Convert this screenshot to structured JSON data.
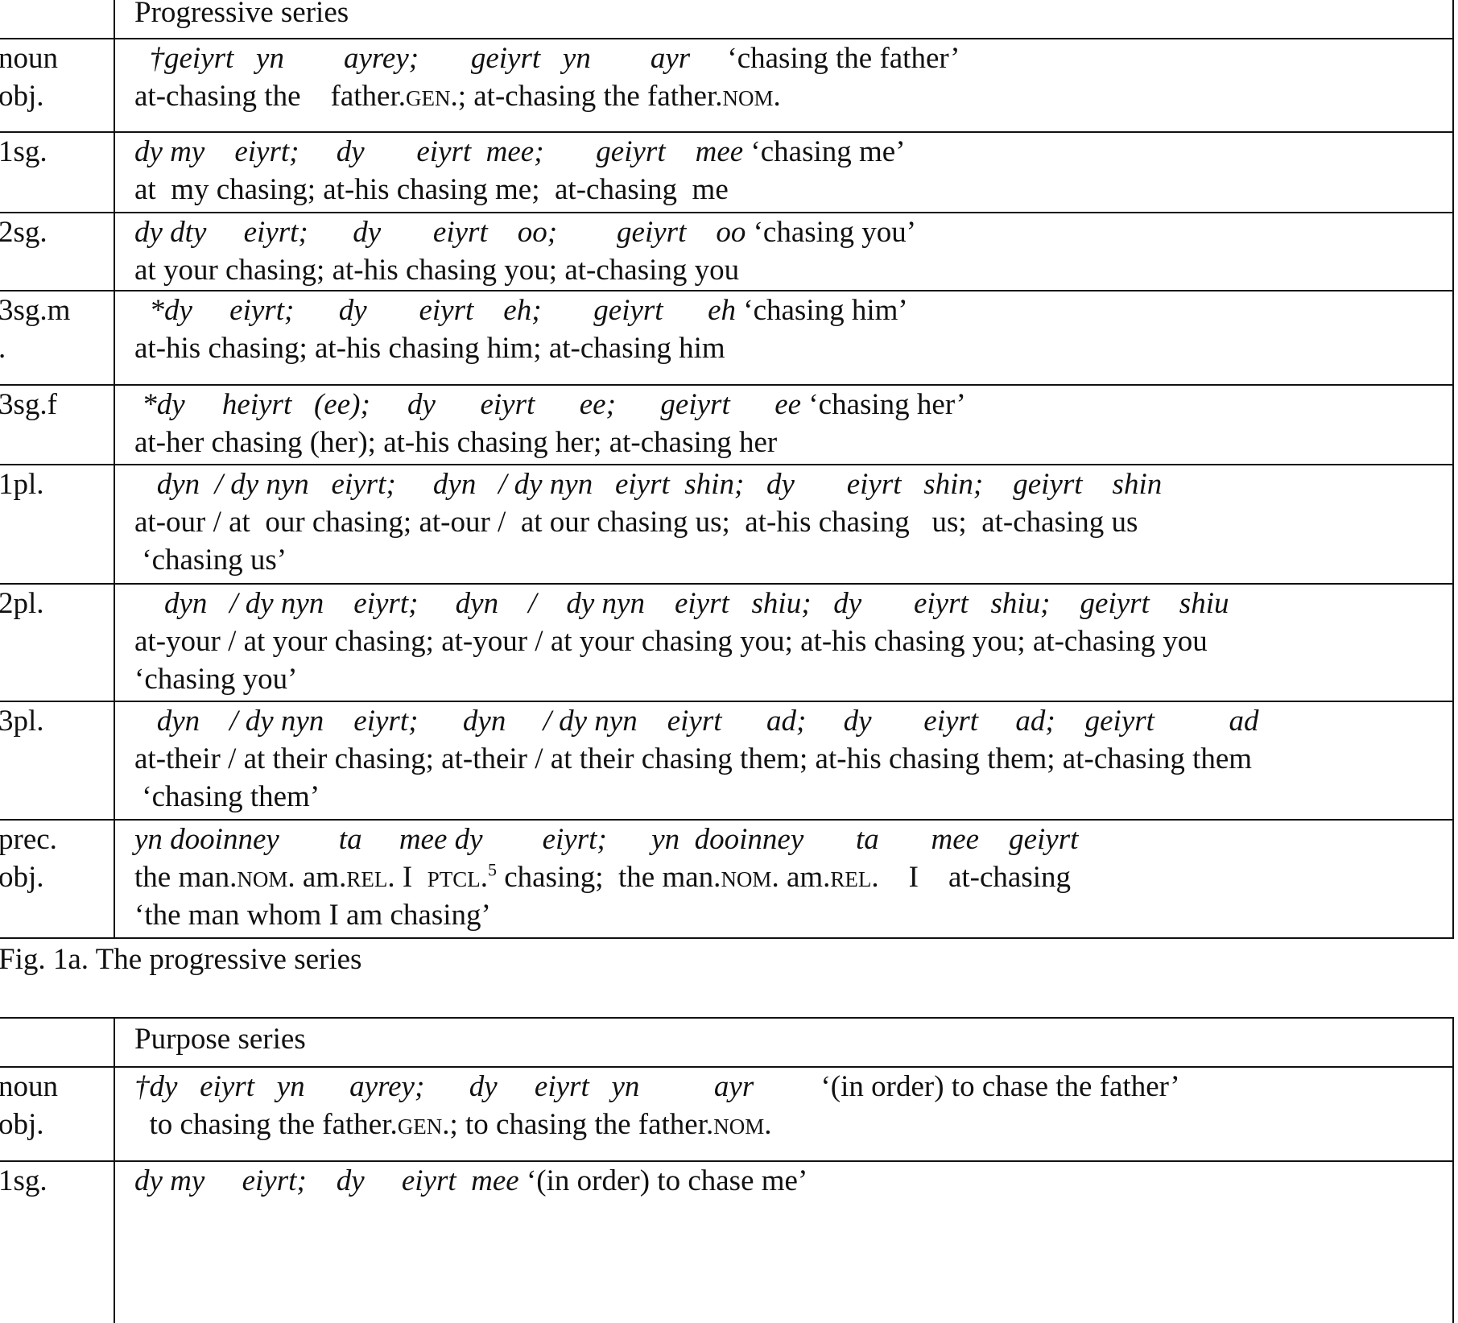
{
  "table1": {
    "header": "Progressive series",
    "rows": [
      {
        "label": "noun\nobj.",
        "lines": [
          [
            [
              "i",
              "  †geiyrt   yn        ayrey;       geiyrt   yn        ayr     "
            ],
            [
              "n",
              "‘chasing the father’"
            ]
          ],
          [
            [
              "n",
              "at-chasing the    father."
            ],
            [
              "sc",
              "GEN"
            ],
            [
              "n",
              ".; at-chasing the father."
            ],
            [
              "sc",
              "NOM"
            ],
            [
              "n",
              "."
            ]
          ]
        ]
      },
      {
        "label": "1sg.",
        "lines": [
          [
            [
              "i",
              "dy my    eiyrt;     dy       eiyrt  mee;       geiyrt    mee "
            ],
            [
              "n",
              "‘chasing me’"
            ]
          ],
          [
            [
              "n",
              "at  my chasing; at-his chasing me;  at-chasing  me"
            ]
          ]
        ]
      },
      {
        "label": "2sg.",
        "lines": [
          [
            [
              "i",
              "dy dty     eiyrt;      dy       eiyrt    oo;        geiyrt    oo "
            ],
            [
              "n",
              "‘chasing you’"
            ]
          ],
          [
            [
              "n",
              "at your chasing; at-his chasing you; at-chasing you"
            ]
          ]
        ]
      },
      {
        "label": "3sg.m\n.",
        "lines": [
          [
            [
              "i",
              "  *dy     eiyrt;      dy       eiyrt    eh;       geiyrt      eh "
            ],
            [
              "n",
              "‘chasing him’"
            ]
          ],
          [
            [
              "n",
              "at-his chasing; at-his chasing him; at-chasing him"
            ]
          ]
        ]
      },
      {
        "label": "3sg.f",
        "lines": [
          [
            [
              "i",
              " *dy     heiyrt   (ee);     dy      eiyrt      ee;      geiyrt      ee "
            ],
            [
              "n",
              "‘chasing her’"
            ]
          ],
          [
            [
              "n",
              "at-her chasing (her); at-his chasing her; at-chasing her"
            ]
          ]
        ]
      },
      {
        "label": "1pl.",
        "lines": [
          [
            [
              "i",
              "   dyn  / dy nyn   eiyrt;     dyn   / dy nyn   eiyrt  shin;   dy       eiyrt   shin;    geiyrt    shin"
            ]
          ],
          [
            [
              "n",
              "at-our / at  our chasing; at-our /  at our chasing us;  at-his chasing   us;  at-chasing us"
            ]
          ],
          [
            [
              "n",
              " ‘chasing us’"
            ]
          ]
        ]
      },
      {
        "label": "2pl.",
        "lines": [
          [
            [
              "i",
              "    dyn   / dy nyn    eiyrt;     dyn    /    dy nyn    eiyrt   shiu;   dy       eiyrt   shiu;    geiyrt    shiu"
            ]
          ],
          [
            [
              "n",
              "at-your / at your chasing; at-your / at your chasing you; at-his chasing you; at-chasing you"
            ]
          ],
          [
            [
              "n",
              "‘chasing you’"
            ]
          ]
        ]
      },
      {
        "label": "3pl.",
        "lines": [
          [
            [
              "i",
              "   dyn    / dy nyn    eiyrt;      dyn     / dy nyn    eiyrt      ad;     dy       eiyrt     ad;    geiyrt          ad"
            ]
          ],
          [
            [
              "n",
              "at-their / at their chasing; at-their / at their chasing them; at-his chasing them; at-chasing them"
            ]
          ],
          [
            [
              "n",
              " ‘chasing them’"
            ]
          ]
        ]
      },
      {
        "label": "prec.\nobj.",
        "lines": [
          [
            [
              "i",
              "yn dooinney        ta     mee dy        eiyrt;      yn  dooinney       ta       mee    geiyrt"
            ]
          ],
          [
            [
              "n",
              "the man."
            ],
            [
              "sc",
              "NOM"
            ],
            [
              "n",
              ". am."
            ],
            [
              "sc",
              "REL"
            ],
            [
              "n",
              ". I  "
            ],
            [
              "sc",
              "PTCL"
            ],
            [
              "n",
              "."
            ],
            [
              "sup",
              "5"
            ],
            [
              "n",
              " chasing;  the man."
            ],
            [
              "sc",
              "NOM"
            ],
            [
              "n",
              ". am."
            ],
            [
              "sc",
              "REL"
            ],
            [
              "n",
              ".    I    at-chasing"
            ]
          ],
          [
            [
              "n",
              "‘the man whom I am chasing’"
            ]
          ]
        ]
      }
    ]
  },
  "caption1": "Fig. 1a. The progressive series",
  "table2": {
    "header": "Purpose series",
    "rows": [
      {
        "label": "noun\nobj.",
        "lines": [
          [
            [
              "i",
              "†dy   eiyrt   yn      ayrey;      dy     eiyrt   yn          ayr         "
            ],
            [
              "n",
              "‘(in order) to chase the father’"
            ]
          ],
          [
            [
              "n",
              "  to chasing the father."
            ],
            [
              "sc",
              "GEN"
            ],
            [
              "n",
              ".; to chasing the father."
            ],
            [
              "sc",
              "NOM"
            ],
            [
              "n",
              "."
            ]
          ]
        ]
      },
      {
        "label": "1sg.",
        "lines": [
          [
            [
              "i",
              "dy my     eiyrt;    dy     eiyrt  mee "
            ],
            [
              "n",
              "‘(in order) to chase me’"
            ]
          ]
        ]
      }
    ]
  }
}
